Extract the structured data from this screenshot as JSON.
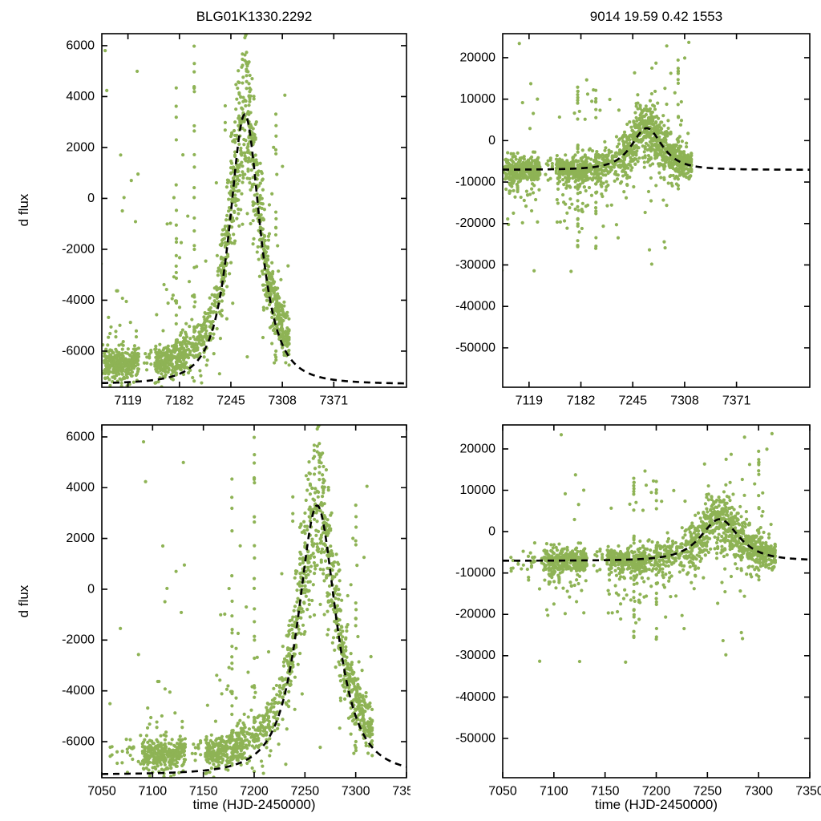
{
  "figure": {
    "background": "#ffffff"
  },
  "chart_data": {
    "type": "scatter",
    "layout": "2x2",
    "marker_color": "#8eb355",
    "curve_color": "#000000",
    "models": {
      "left": {
        "baseline": -7300,
        "amplitude": 10600,
        "t0": 7262,
        "width": 28.6,
        "power": 1.5
      },
      "right": {
        "baseline": -7050,
        "amplitude": 10050,
        "t0": 7262,
        "width": 28.6,
        "power": 1.5
      }
    },
    "observations": {
      "seed": 1553,
      "night_start": 7058,
      "night_end": 7316,
      "density": [
        {
          "from": 7058,
          "to": 7090,
          "prob": 0.35,
          "min": 1,
          "max": 3
        },
        {
          "from": 7090,
          "to": 7133,
          "prob": 1.0,
          "min": 4,
          "max": 11
        },
        {
          "from": 7133,
          "to": 7152,
          "prob": 0.3,
          "min": 1,
          "max": 3
        },
        {
          "from": 7152,
          "to": 7192,
          "prob": 1.0,
          "min": 4,
          "max": 11
        },
        {
          "from": 7192,
          "to": 7232,
          "prob": 1.0,
          "min": 2,
          "max": 7
        },
        {
          "from": 7232,
          "to": 7317,
          "prob": 1.0,
          "min": 5,
          "max": 13
        }
      ],
      "left_noise": {
        "baseline_offset": 750,
        "sigma": 330,
        "sigma_peak": 1250,
        "outlier_frac": 0.12,
        "outlier_sigma": 2300,
        "extreme_frac": 0.02,
        "extreme_low": -7400,
        "extreme_range": 13870
      },
      "right_noise": {
        "sigma": 1500,
        "sigma_peak": 2500,
        "outlier_frac": 0.07,
        "outlier_sigma": 8000,
        "extreme_frac": 0.015,
        "extreme_low": -32000,
        "extreme_range": 56000,
        "neg_tail_frac": 0.25,
        "neg_tail_sigma": 5000,
        "neg_tail_before": 7245
      },
      "bad_nights": [
        {
          "t": 7178,
          "count": 24,
          "left": [
            -7400,
            6400
          ],
          "right": [
            -27000,
            12000
          ]
        },
        {
          "t": 7200,
          "count": 26,
          "left": [
            -7400,
            6450
          ],
          "right": [
            -26000,
            13000
          ]
        },
        {
          "t": 7300,
          "count": 18,
          "left": [
            -6700,
            3600
          ],
          "right": [
            -12000,
            21000
          ]
        }
      ]
    },
    "panels": [
      {
        "pos": "tl",
        "title": "BLG01K1330.2292",
        "ylabel": "d flux",
        "xlabel": "",
        "series": "left",
        "xlim": [
          7087,
          7460
        ],
        "ylim": [
          -7420,
          6470
        ],
        "xticks": [
          7119,
          7182,
          7245,
          7308,
          7371
        ],
        "yticks": [
          6000,
          4000,
          2000,
          0,
          -2000,
          -4000,
          -6000
        ],
        "grid": false
      },
      {
        "pos": "tr",
        "title": "9014  19.59  0.42  1553",
        "ylabel": "",
        "xlabel": "",
        "series": "right",
        "xlim": [
          7087,
          7460
        ],
        "ylim": [
          -59500,
          25800
        ],
        "xticks": [
          7119,
          7182,
          7245,
          7308,
          7371
        ],
        "yticks": [
          20000,
          10000,
          0,
          -10000,
          -20000,
          -30000,
          -40000,
          -50000
        ],
        "grid": false
      },
      {
        "pos": "bl",
        "title": "",
        "ylabel": "d flux",
        "xlabel": "time (HJD-2450000)",
        "series": "left",
        "xlim": [
          7050,
          7350
        ],
        "ylim": [
          -7420,
          6470
        ],
        "xticks": [
          7050,
          7100,
          7150,
          7200,
          7250,
          7300,
          7350
        ],
        "yticks": [
          6000,
          4000,
          2000,
          0,
          -2000,
          -4000,
          -6000
        ],
        "grid": false
      },
      {
        "pos": "br",
        "title": "",
        "ylabel": "",
        "xlabel": "time (HJD-2450000)",
        "series": "right",
        "xlim": [
          7050,
          7350
        ],
        "ylim": [
          -59500,
          25800
        ],
        "xticks": [
          7050,
          7100,
          7150,
          7200,
          7250,
          7300,
          7350
        ],
        "yticks": [
          20000,
          10000,
          0,
          -10000,
          -20000,
          -30000,
          -40000,
          -50000
        ],
        "grid": false
      }
    ]
  }
}
